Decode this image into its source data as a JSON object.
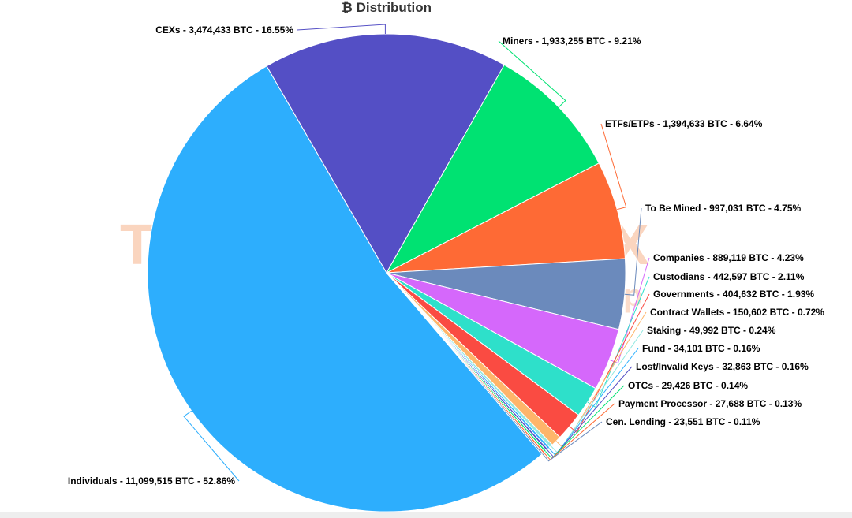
{
  "chart_data": {
    "type": "pie",
    "title": "₿ Distribution",
    "slices": [
      {
        "name": "Individuals",
        "value": 11099515,
        "percent": 52.86,
        "label": "Individuals - 11,099,515 BTC - 52.86%",
        "color": "#2daefd"
      },
      {
        "name": "CEXs",
        "value": 3474433,
        "percent": 16.55,
        "label": "CEXs - 3,474,433 BTC - 16.55%",
        "color": "#544fc5"
      },
      {
        "name": "Miners",
        "value": 1933255,
        "percent": 9.21,
        "label": "Miners - 1,933,255 BTC - 9.21%",
        "color": "#00e272"
      },
      {
        "name": "ETFs/ETPs",
        "value": 1394633,
        "percent": 6.64,
        "label": "ETFs/ETPs - 1,394,633 BTC - 6.64%",
        "color": "#fe6a35"
      },
      {
        "name": "To Be Mined",
        "value": 997031,
        "percent": 4.75,
        "label": "To Be Mined - 997,031 BTC - 4.75%",
        "color": "#6b8abc"
      },
      {
        "name": "Companies",
        "value": 889119,
        "percent": 4.23,
        "label": "Companies - 889,119 BTC - 4.23%",
        "color": "#d568fb"
      },
      {
        "name": "Custodians",
        "value": 442597,
        "percent": 2.11,
        "label": "Custodians - 442,597 BTC - 2.11%",
        "color": "#2ee0ca"
      },
      {
        "name": "Governments",
        "value": 404632,
        "percent": 1.93,
        "label": "Governments - 404,632 BTC - 1.93%",
        "color": "#fa4b42"
      },
      {
        "name": "Contract Wallets",
        "value": 150602,
        "percent": 0.72,
        "label": "Contract Wallets - 150,602 BTC - 0.72%",
        "color": "#feb56a"
      },
      {
        "name": "Staking",
        "value": 49992,
        "percent": 0.24,
        "label": "Staking - 49,992 BTC - 0.24%",
        "color": "#91e8e1"
      },
      {
        "name": "Fund",
        "value": 34101,
        "percent": 0.16,
        "label": "Fund - 34,101 BTC - 0.16%",
        "color": "#2caffe"
      },
      {
        "name": "Lost/Invalid Keys",
        "value": 32863,
        "percent": 0.16,
        "label": "Lost/Invalid Keys - 32,863 BTC - 0.16%",
        "color": "#544fc5"
      },
      {
        "name": "OTCs",
        "value": 29426,
        "percent": 0.14,
        "label": "OTCs - 29,426 BTC - 0.14%",
        "color": "#00e272"
      },
      {
        "name": "Payment Processor",
        "value": 27688,
        "percent": 0.13,
        "label": "Payment Processor - 27,688 BTC - 0.13%",
        "color": "#fe6a35"
      },
      {
        "name": "Cen. Lending",
        "value": 23551,
        "percent": 0.11,
        "label": "Cen. Lending - 23,551 BTC - 0.11%",
        "color": "#6b8abc"
      }
    ],
    "legend": "none"
  }
}
